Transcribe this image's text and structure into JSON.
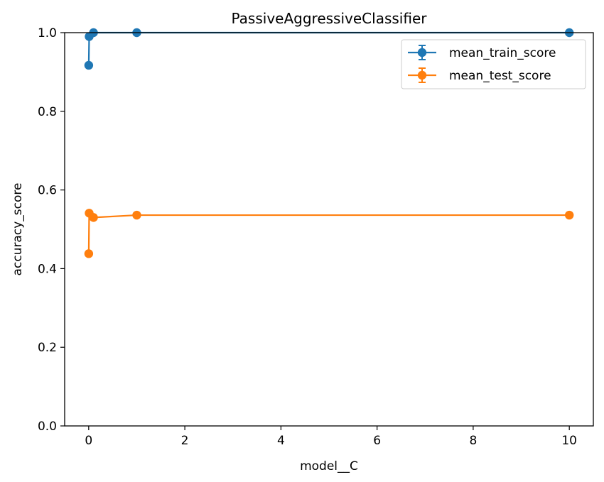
{
  "chart_data": {
    "type": "line",
    "title": "PassiveAggressiveClassifier",
    "xlabel": "model__C",
    "ylabel": "accuracy_score",
    "xlim": [
      -0.5,
      10.5
    ],
    "ylim": [
      0.0,
      1.0
    ],
    "x_ticks": [
      0,
      2,
      4,
      6,
      8,
      10
    ],
    "x_tick_labels": [
      "0",
      "2",
      "4",
      "6",
      "8",
      "10"
    ],
    "y_ticks": [
      0.0,
      0.2,
      0.4,
      0.6,
      0.8,
      1.0
    ],
    "y_tick_labels": [
      "0.0",
      "0.2",
      "0.4",
      "0.6",
      "0.8",
      "1.0"
    ],
    "grid": false,
    "legend_position": "top-right",
    "series": [
      {
        "name": "mean_train_score",
        "color": "#1f77b4",
        "x": [
          0.001,
          0.01,
          0.1,
          1,
          10
        ],
        "y": [
          0.917,
          0.99,
          1.0,
          1.0,
          1.0
        ]
      },
      {
        "name": "mean_test_score",
        "color": "#ff7f0e",
        "x": [
          0.001,
          0.01,
          0.1,
          1,
          10
        ],
        "y": [
          0.438,
          0.541,
          0.53,
          0.536,
          0.536
        ]
      }
    ]
  }
}
